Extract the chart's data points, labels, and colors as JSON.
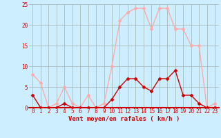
{
  "hours": [
    0,
    1,
    2,
    3,
    4,
    5,
    6,
    7,
    8,
    9,
    10,
    11,
    12,
    13,
    14,
    15,
    16,
    17,
    18,
    19,
    20,
    21,
    22,
    23
  ],
  "vent_moyen": [
    3,
    0,
    0,
    0,
    1,
    0,
    0,
    0,
    0,
    0,
    2,
    5,
    7,
    7,
    5,
    4,
    7,
    7,
    9,
    3,
    3,
    1,
    0,
    0
  ],
  "en_rafales": [
    8,
    6,
    0,
    1,
    5,
    1,
    0,
    3,
    0,
    1,
    10,
    21,
    23,
    24,
    24,
    19,
    24,
    24,
    19,
    19,
    15,
    15,
    0,
    1
  ],
  "color_moyen": "#cc0000",
  "color_rafales": "#ffaaaa",
  "background_color": "#cceeff",
  "grid_color": "#aabbbb",
  "xlabel": "Vent moyen/en rafales ( km/h )",
  "ylim": [
    0,
    25
  ],
  "yticks": [
    0,
    5,
    10,
    15,
    20,
    25
  ],
  "xticks": [
    0,
    1,
    2,
    3,
    4,
    5,
    6,
    7,
    8,
    9,
    10,
    11,
    12,
    13,
    14,
    15,
    16,
    17,
    18,
    19,
    20,
    21,
    22,
    23
  ],
  "marker": "D",
  "markersize": 2.5,
  "linewidth": 1.0,
  "tick_fontsize": 5.5,
  "xlabel_fontsize": 6.5
}
